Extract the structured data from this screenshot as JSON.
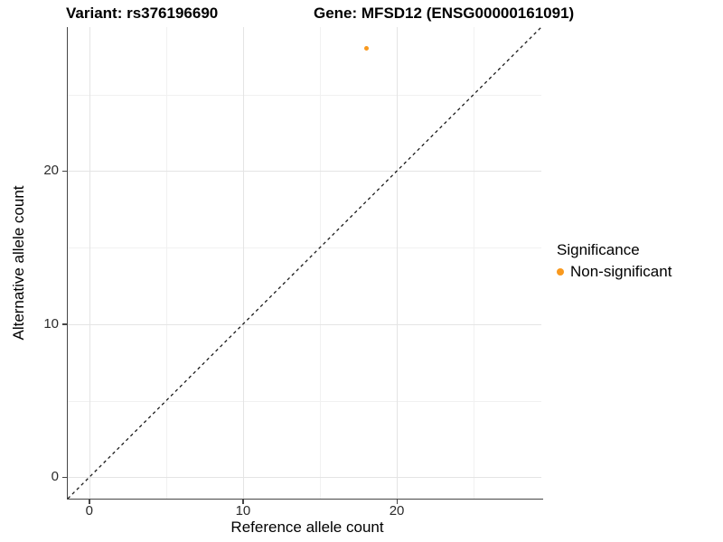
{
  "colors": {
    "accent_orange": "#F9991E",
    "axis_line": "#464646",
    "tick_label": "#2b2b2b",
    "grid_major": "#e4e4e4",
    "grid_minor": "#f1f1f1",
    "background": "#ffffff",
    "identity_line": "#1a1a1a"
  },
  "chart_data": {
    "type": "scatter",
    "titles": {
      "variant": "Variant: rs376196690",
      "gene": "Gene: MFSD12 (ENSG00000161091)"
    },
    "xlabel": "Reference allele count",
    "ylabel": "Alternative allele count",
    "xlim": [
      -1.4,
      29.4
    ],
    "ylim": [
      -1.4,
      29.4
    ],
    "x_ticks": [
      0,
      10,
      20
    ],
    "x_tick_labels": [
      "0",
      "10",
      "20"
    ],
    "x_minor_ticks": [
      5,
      15,
      25
    ],
    "y_ticks": [
      0,
      10,
      20
    ],
    "y_tick_labels": [
      "0",
      "10",
      "20"
    ],
    "y_minor_ticks": [
      5,
      15,
      25
    ],
    "grid": "major and minor gridlines, light gray on white panel",
    "legend": {
      "title": "Significance",
      "position": "right",
      "items": [
        {
          "label": "Non-significant",
          "color": "#F9991E"
        }
      ]
    },
    "series": [
      {
        "name": "Non-significant",
        "color": "#F9991E",
        "points": [
          {
            "x": 18,
            "y": 28
          }
        ]
      }
    ],
    "identity_line": {
      "label": "y = x",
      "style": "dashed",
      "color": "#1a1a1a"
    }
  }
}
